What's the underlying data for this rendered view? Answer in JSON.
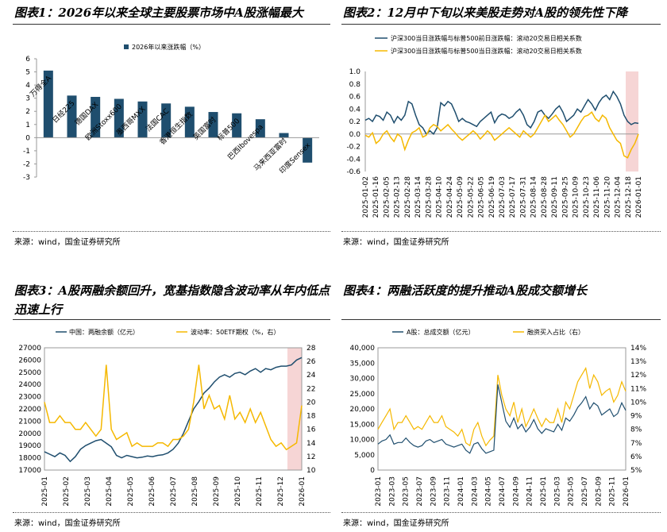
{
  "source_text": "来源：wind，国金证券研究所",
  "chart_data": [
    {
      "type": "bar",
      "title": "图表1：2026年以来全球主要股票市场中A股涨幅最大",
      "legend": "2026年以来涨跌幅（%）",
      "categories": [
        "万得全A",
        "日经225",
        "德国DAX",
        "欧洲Stoxx600",
        "墨西哥MXX",
        "法国CAC",
        "香港恒生指数",
        "英国富时",
        "标普500",
        "巴西Ibovespa",
        "马来西亚富时",
        "印度Sensex"
      ],
      "values": [
        5.1,
        3.2,
        3.1,
        2.95,
        2.75,
        2.6,
        2.35,
        1.95,
        1.85,
        1.4,
        0.35,
        -1.9
      ],
      "ylim": [
        -3,
        6
      ],
      "yticks": [
        -3,
        -2,
        -1,
        0,
        1,
        2,
        3,
        4,
        5,
        6
      ],
      "color": "#1F4E6E"
    },
    {
      "type": "line",
      "title": "图表2：12月中下旬以来美股走势对A股的领先性下降",
      "series": [
        {
          "name": "沪深300当日涨跌幅与标普500前日涨跌幅：滚动20交易日相关系数",
          "color": "#1F4E6E",
          "values": [
            0.22,
            0.25,
            0.2,
            0.3,
            0.28,
            0.22,
            0.35,
            0.3,
            0.18,
            0.28,
            0.22,
            0.3,
            0.52,
            0.48,
            0.3,
            0.15,
            0.1,
            0.0,
            0.05,
            0.0,
            0.1,
            0.5,
            0.45,
            0.52,
            0.48,
            0.35,
            0.2,
            0.25,
            0.2,
            0.18,
            0.15,
            0.12,
            0.2,
            0.25,
            0.3,
            0.35,
            0.18,
            0.28,
            0.32,
            0.3,
            0.25,
            0.28,
            0.35,
            0.4,
            0.3,
            0.15,
            0.1,
            0.2,
            0.35,
            0.38,
            0.3,
            0.25,
            0.32,
            0.4,
            0.45,
            0.35,
            0.2,
            0.25,
            0.3,
            0.4,
            0.35,
            0.45,
            0.55,
            0.48,
            0.38,
            0.5,
            0.58,
            0.62,
            0.55,
            0.68,
            0.6,
            0.48,
            0.3,
            0.2,
            0.15,
            0.18,
            0.17
          ]
        },
        {
          "name": "沪深300当日涨跌幅与标普500当日涨跌幅：滚动20交易日相关系数",
          "color": "#F5B800",
          "values": [
            -0.02,
            -0.05,
            0.02,
            -0.15,
            -0.1,
            0.0,
            0.05,
            -0.05,
            -0.12,
            0.0,
            -0.05,
            -0.25,
            -0.1,
            0.02,
            0.05,
            0.1,
            -0.05,
            -0.02,
            0.1,
            0.15,
            0.12,
            0.05,
            0.1,
            0.15,
            0.08,
            0.02,
            -0.05,
            -0.1,
            -0.05,
            0.0,
            0.05,
            0.0,
            -0.08,
            -0.02,
            0.05,
            0.0,
            -0.1,
            -0.05,
            0.0,
            0.05,
            0.1,
            0.05,
            0.0,
            -0.05,
            0.05,
            0.0,
            -0.05,
            0.0,
            0.1,
            0.2,
            0.3,
            0.2,
            0.25,
            0.3,
            0.22,
            0.15,
            0.05,
            -0.05,
            0.0,
            0.1,
            0.2,
            0.28,
            0.3,
            0.35,
            0.25,
            0.2,
            0.3,
            0.25,
            0.1,
            0.0,
            -0.1,
            -0.15,
            -0.35,
            -0.38,
            -0.25,
            -0.15,
            0.0
          ]
        }
      ],
      "x_labels": [
        "2025-01-02",
        "2025-01-16",
        "2025-02-05",
        "2025-02-13",
        "2025-02-28",
        "2025-03-14",
        "2025-03-28",
        "2025-04-10",
        "2025-04-24",
        "2025-05-09",
        "2025-05-22",
        "2025-06-05",
        "2025-06-19",
        "2025-07-03",
        "2025-07-17",
        "2025-07-31",
        "2025-08-14",
        "2025-08-28",
        "2025-09-11",
        "2025-09-25",
        "2025-10-09",
        "2025-10-23",
        "2025-11-06",
        "2025-11-20",
        "2025-12-04",
        "2025-12-18",
        "2026-01-01"
      ],
      "ylim": [
        -0.6,
        1.0
      ],
      "yticks": [
        -0.6,
        -0.4,
        -0.2,
        0.0,
        0.2,
        0.4,
        0.6,
        0.8,
        1.0
      ],
      "highlight": "2025-12-18 to 2026-01-01"
    },
    {
      "type": "line",
      "title": "图表3：A股两融余额回升，宽基指数隐含波动率从年内低点迅速上行",
      "series": [
        {
          "name": "中国：两融余额（亿元）",
          "axis": "left",
          "color": "#1F4E6E",
          "values": [
            18500,
            18300,
            18100,
            18400,
            18200,
            17700,
            18100,
            18700,
            19000,
            19200,
            19400,
            19500,
            19200,
            18900,
            18200,
            18000,
            18200,
            18100,
            18000,
            18050,
            18150,
            18100,
            18200,
            18250,
            18400,
            18700,
            19200,
            20000,
            21000,
            22000,
            22600,
            23300,
            23700,
            24200,
            24600,
            24800,
            24600,
            24900,
            25000,
            24800,
            25100,
            25300,
            25000,
            25300,
            25200,
            25400,
            25500,
            25500,
            25600,
            26000,
            26200
          ]
        },
        {
          "name": "波动率：50ETF期权（%，右）",
          "axis": "right",
          "color": "#F5B800",
          "values": [
            20,
            17,
            17,
            18,
            17,
            17,
            16,
            16,
            17,
            16,
            15,
            16,
            25.5,
            16,
            14.5,
            15,
            15.5,
            13.5,
            14,
            13.5,
            13.5,
            13.5,
            14,
            14,
            13.5,
            14.5,
            14.5,
            15,
            16,
            20,
            25.5,
            19,
            21,
            19,
            19.5,
            17.5,
            21,
            17.5,
            18.5,
            17,
            19,
            17,
            18.5,
            16.5,
            14.5,
            13.5,
            14,
            13,
            13.5,
            14,
            19.5
          ]
        }
      ],
      "x_labels": [
        "2025-01",
        "2025-02",
        "2025-03",
        "2025-04",
        "2025-05",
        "2025-06",
        "2025-07",
        "2025-08",
        "2025-09",
        "2025-10",
        "2025-11",
        "2025-12",
        "2026-01"
      ],
      "ylim_left": [
        17000,
        27000
      ],
      "yticks_left": [
        17000,
        18000,
        19000,
        20000,
        21000,
        22000,
        23000,
        24000,
        25000,
        26000,
        27000
      ],
      "ylim_right": [
        10,
        28
      ],
      "yticks_right": [
        10,
        12,
        14,
        16,
        18,
        20,
        22,
        24,
        26,
        28
      ],
      "highlight": "2025-12 to 2026-01"
    },
    {
      "type": "line",
      "title": "图表4：两融活跃度的提升推动A股成交额增长",
      "series": [
        {
          "name": "A股：总成交额（亿元）",
          "axis": "left",
          "color": "#1F4E6E",
          "values": [
            8500,
            9500,
            10000,
            11500,
            8500,
            9000,
            9000,
            10500,
            9000,
            8000,
            7500,
            8000,
            9500,
            10000,
            9000,
            9500,
            10000,
            8500,
            8000,
            7500,
            8000,
            8500,
            6500,
            5500,
            8500,
            9000,
            7000,
            5500,
            6000,
            6500,
            28000,
            22000,
            16000,
            14000,
            17000,
            13500,
            15000,
            12500,
            14000,
            16500,
            13500,
            12000,
            13500,
            13000,
            12500,
            15000,
            13000,
            17000,
            16000,
            18000,
            20500,
            22000,
            24000,
            20000,
            22000,
            21000,
            18000,
            19000,
            20000,
            17500,
            18500,
            22000,
            19500
          ]
        },
        {
          "name": "融资买入占比（右）",
          "axis": "right",
          "color": "#F5B800",
          "values": [
            0.08,
            0.085,
            0.09,
            0.095,
            0.08,
            0.085,
            0.085,
            0.09,
            0.085,
            0.08,
            0.082,
            0.08,
            0.085,
            0.09,
            0.085,
            0.085,
            0.09,
            0.082,
            0.08,
            0.078,
            0.075,
            0.08,
            0.07,
            0.068,
            0.08,
            0.085,
            0.075,
            0.068,
            0.072,
            0.075,
            0.12,
            0.105,
            0.095,
            0.09,
            0.1,
            0.085,
            0.095,
            0.082,
            0.088,
            0.095,
            0.088,
            0.082,
            0.088,
            0.085,
            0.085,
            0.095,
            0.085,
            0.1,
            0.095,
            0.105,
            0.115,
            0.12,
            0.125,
            0.11,
            0.12,
            0.115,
            0.105,
            0.108,
            0.11,
            0.1,
            0.105,
            0.115,
            0.108
          ]
        }
      ],
      "x_labels": [
        "2023-01",
        "2023-03",
        "2023-05",
        "2023-07",
        "2023-09",
        "2023-11",
        "2024-01",
        "2024-03",
        "2024-05",
        "2024-07",
        "2024-09",
        "2024-11",
        "2025-01",
        "2025-03",
        "2025-05",
        "2025-07",
        "2025-09",
        "2025-11",
        "2026-01"
      ],
      "ylim_left": [
        0,
        40000
      ],
      "ytick_labels_left": [
        "0",
        "5,000",
        "10,000",
        "15,000",
        "20,000",
        "25,000",
        "30,000",
        "35,000",
        "40,000"
      ],
      "ylim_right": [
        0.05,
        0.14
      ],
      "ytick_labels_right": [
        "5%",
        "6%",
        "7%",
        "8%",
        "9%",
        "10%",
        "11%",
        "12%",
        "13%",
        "14%"
      ]
    }
  ]
}
